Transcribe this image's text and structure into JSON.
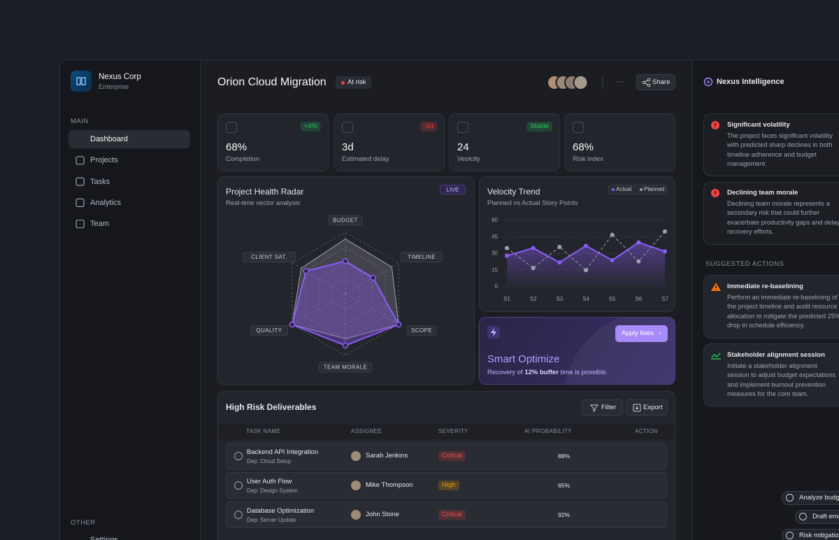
{
  "sidebar": {
    "company": "Nexus Corp",
    "plan": "Enterprise",
    "main_label": "MAIN",
    "nav": [
      "Dashboard",
      "Projects",
      "Tasks",
      "Analytics",
      "Team"
    ],
    "other_label": "OTHER",
    "other_nav": [
      "Settings"
    ]
  },
  "header": {
    "title": "Orion Cloud Migration",
    "status": "At risk",
    "more": "···",
    "share": "Share"
  },
  "kpis": [
    {
      "value": "68%",
      "label": "Completion",
      "badge": "+4%",
      "color": "#22c55e"
    },
    {
      "value": "3d",
      "label": "Estimated delay",
      "badge": "-2d",
      "color": "#ef4444"
    },
    {
      "value": "24",
      "label": "Veolcity",
      "badge": "Stable",
      "color": "#22c55e"
    },
    {
      "value": "68%",
      "label": "Risk index",
      "badge": null,
      "color": null
    }
  ],
  "chart_data": [
    {
      "type": "radar",
      "title": "Project Health Radar",
      "subtitle": "Real-time vector analysis",
      "badge": "LIVE",
      "categories": [
        "BUDGET",
        "TIMELINE",
        "SCOPE",
        "TEAM MORALE",
        "QUALITY",
        "CLIENT SAT."
      ],
      "series": [
        {
          "color": "#a1a1aa",
          "values": [
            89,
            87,
            100,
            73,
            100,
            83
          ]
        },
        {
          "color": "#8b5cf6",
          "values": [
            53,
            52,
            100,
            84,
            100,
            74
          ]
        }
      ],
      "rlim": [
        0,
        100
      ],
      "rticks": [
        25,
        50,
        75,
        100
      ]
    },
    {
      "type": "line",
      "title": "Velocity Trend",
      "subtitle": "Planned vs Actual Story Points",
      "categories": [
        "S1",
        "S2",
        "S3",
        "S4",
        "S5",
        "S6",
        "S7"
      ],
      "series": [
        {
          "name": "Actual",
          "color": "#8b5cf6",
          "values": [
            28,
            35,
            22,
            37,
            24,
            40,
            32
          ]
        },
        {
          "name": "Planned",
          "color": "#a1a1aa",
          "values": [
            35,
            17,
            36,
            15,
            47,
            23,
            50
          ]
        }
      ],
      "ylim": [
        0,
        60
      ],
      "yticks": [
        0,
        15,
        30,
        45,
        60
      ],
      "grid": true
    }
  ],
  "optimize": {
    "button": "Apply fixes",
    "title": "Smart Optimize",
    "text": [
      "Recovery of ",
      "12% buffer",
      " time is possible."
    ]
  },
  "table": {
    "title": "High Risk Deliverables",
    "filter": "Filter",
    "export": "Export",
    "columns": [
      "TASK NAME",
      "ASSIGNEE",
      "SEVERITY",
      "AI PROBABILITY",
      "ACTION"
    ],
    "rows": [
      {
        "task": "Backend API Integration",
        "dep": "Dep: Cloud Setup",
        "assignee": "Sarah Jenkins",
        "severity": "Critical",
        "severity_color": "#ef4444",
        "probability": 88,
        "probability_label": "88%"
      },
      {
        "task": "User Auth Flow",
        "dep": "Dep: Design System",
        "assignee": "Mike Thompson",
        "severity": "High",
        "severity_color": "#f59e0b",
        "probability": 65,
        "probability_label": "65%"
      },
      {
        "task": "Database Optimization",
        "dep": "Dep: Server Update",
        "assignee": "John Stone",
        "severity": "Critical",
        "severity_color": "#ef4444",
        "probability": 92,
        "probability_label": "92%"
      }
    ]
  },
  "intel": {
    "title": "Nexus Intelligence",
    "insights": [
      {
        "title": "Significant volatility",
        "text": "The project faces significant volatility with predicted sharp declines in both timeline adherence and budget management."
      },
      {
        "title": "Declining team morale",
        "text": "Declining team morale represents a secondary risk that could further exacerbate productivity gaps and delay recovery efforts."
      }
    ],
    "actions_label": "SUGGESTED ACTIONS",
    "actions": [
      {
        "title": "Immediate re-baselining",
        "text": "Perform an immediate re-baselining of the project timeline and audit resource allocation to mitigate the predicted 25% drop in schedule efficiency."
      },
      {
        "title": "Stakeholder alignment session",
        "text": "Initiate a stakeholder alignment session to adjust budget expectations and implement burnout prevention measures for the core team."
      }
    ],
    "chips": [
      "Analyze budget",
      "Draft email",
      "Risk mitigation"
    ]
  }
}
